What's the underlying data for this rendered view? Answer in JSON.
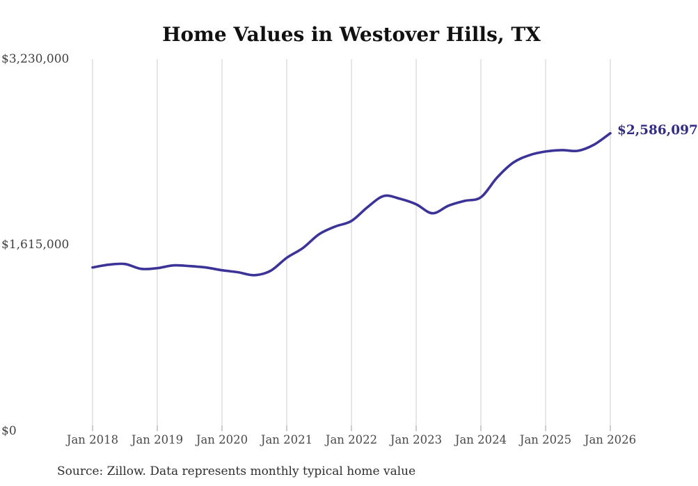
{
  "title": "Home Values in Westover Hills, TX",
  "source_note": "Source: Zillow. Data represents monthly typical home value",
  "annotation": {
    "label": "$2,586,097"
  },
  "colors": {
    "line": "#3b3397",
    "annotation_text": "#332c84",
    "gridline": "#cccccc",
    "tick": "#999999",
    "axis_text": "#4a4a4a",
    "title_text": "#111111",
    "background": "#ffffff"
  },
  "chart_data": {
    "type": "line",
    "title": "Home Values in Westover Hills, TX",
    "xlabel": "",
    "ylabel": "",
    "ylim": [
      0,
      3230000
    ],
    "grid": "vertical-only",
    "legend": "none",
    "x_tick_labels": [
      "Jan 2018",
      "Jan 2019",
      "Jan 2020",
      "Jan 2021",
      "Jan 2022",
      "Jan 2023",
      "Jan 2024",
      "Jan 2025",
      "Jan 2026"
    ],
    "y_ticks": [
      {
        "label": "$0",
        "value": 0
      },
      {
        "label": "$1,615,000",
        "value": 1615000
      },
      {
        "label": "$3,230,000",
        "value": 3230000
      }
    ],
    "series": [
      {
        "name": "Monthly typical home value",
        "sampling": "quarterly estimates read from plot",
        "points": [
          {
            "month": "2018-01",
            "value": 1419000
          },
          {
            "month": "2018-04",
            "value": 1443000
          },
          {
            "month": "2018-07",
            "value": 1449000
          },
          {
            "month": "2018-10",
            "value": 1407000
          },
          {
            "month": "2019-01",
            "value": 1413000
          },
          {
            "month": "2019-04",
            "value": 1437000
          },
          {
            "month": "2019-07",
            "value": 1431000
          },
          {
            "month": "2019-10",
            "value": 1419000
          },
          {
            "month": "2020-01",
            "value": 1395000
          },
          {
            "month": "2020-04",
            "value": 1377000
          },
          {
            "month": "2020-07",
            "value": 1352000
          },
          {
            "month": "2020-10",
            "value": 1390000
          },
          {
            "month": "2021-01",
            "value": 1503000
          },
          {
            "month": "2021-04",
            "value": 1588000
          },
          {
            "month": "2021-07",
            "value": 1708000
          },
          {
            "month": "2021-10",
            "value": 1775000
          },
          {
            "month": "2022-01",
            "value": 1823000
          },
          {
            "month": "2022-04",
            "value": 1944000
          },
          {
            "month": "2022-07",
            "value": 2040000
          },
          {
            "month": "2022-10",
            "value": 2016000
          },
          {
            "month": "2023-01",
            "value": 1968000
          },
          {
            "month": "2023-04",
            "value": 1890000
          },
          {
            "month": "2023-07",
            "value": 1956000
          },
          {
            "month": "2023-10",
            "value": 1998000
          },
          {
            "month": "2024-01",
            "value": 2029000
          },
          {
            "month": "2024-04",
            "value": 2200000
          },
          {
            "month": "2024-07",
            "value": 2330000
          },
          {
            "month": "2024-10",
            "value": 2395000
          },
          {
            "month": "2025-01",
            "value": 2427000
          },
          {
            "month": "2025-04",
            "value": 2439000
          },
          {
            "month": "2025-07",
            "value": 2433000
          },
          {
            "month": "2025-10",
            "value": 2487000
          },
          {
            "month": "2026-01",
            "value": 2586097
          }
        ]
      }
    ],
    "last_point": {
      "month": "2026-01",
      "value": 2586097,
      "label": "$2,586,097"
    }
  }
}
